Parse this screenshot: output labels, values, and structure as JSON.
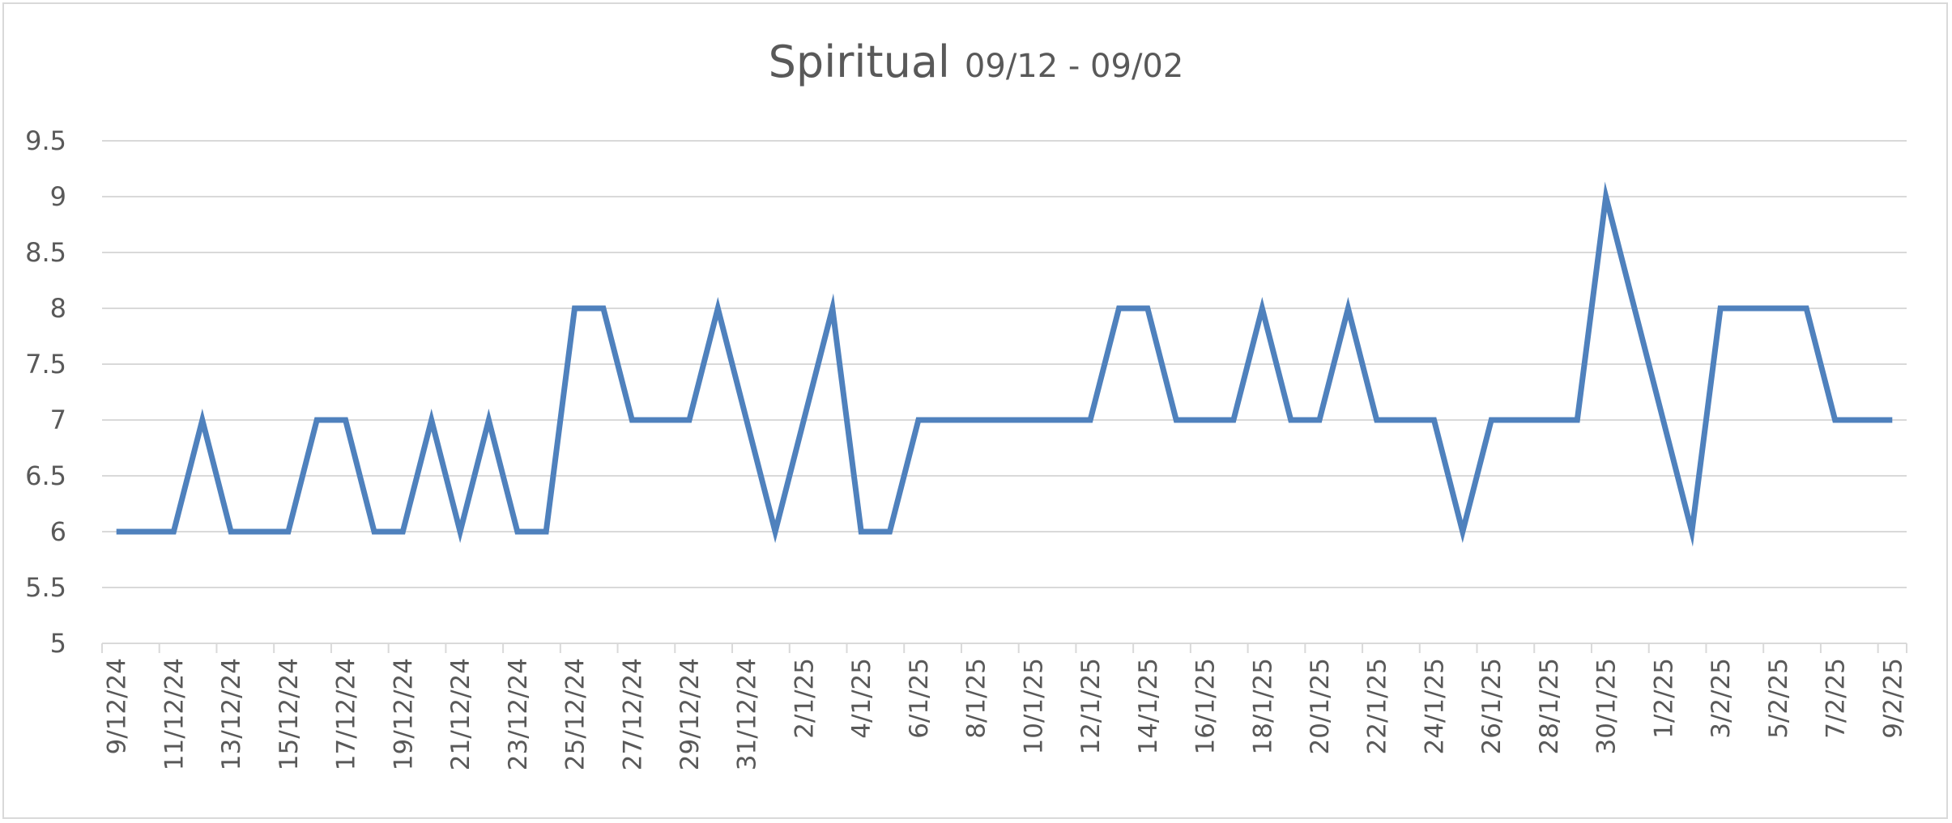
{
  "chart_data": {
    "type": "line",
    "title": "Spiritual",
    "subtitle": "09/12 - 09/02",
    "xlabel": "",
    "ylabel": "",
    "ylim": [
      5,
      9.5
    ],
    "y_ticks": [
      "5",
      "5.5",
      "6",
      "6.5",
      "7",
      "7.5",
      "8",
      "8.5",
      "9",
      "9.5"
    ],
    "grid": true,
    "legend": "none",
    "line_color": "#4F81BD",
    "x_tick_labels": [
      "9/12/24",
      "11/12/24",
      "13/12/24",
      "15/12/24",
      "17/12/24",
      "19/12/24",
      "21/12/24",
      "23/12/24",
      "25/12/24",
      "27/12/24",
      "29/12/24",
      "31/12/24",
      "2/1/25",
      "4/1/25",
      "6/1/25",
      "8/1/25",
      "10/1/25",
      "12/1/25",
      "14/1/25",
      "16/1/25",
      "18/1/25",
      "20/1/25",
      "22/1/25",
      "24/1/25",
      "26/1/25",
      "28/1/25",
      "30/1/25",
      "1/2/25",
      "3/2/25",
      "5/2/25",
      "7/2/25",
      "9/2/25"
    ],
    "x": [
      "9/12/24",
      "10/12/24",
      "11/12/24",
      "12/12/24",
      "13/12/24",
      "14/12/24",
      "15/12/24",
      "16/12/24",
      "17/12/24",
      "18/12/24",
      "19/12/24",
      "20/12/24",
      "21/12/24",
      "22/12/24",
      "23/12/24",
      "24/12/24",
      "25/12/24",
      "26/12/24",
      "27/12/24",
      "28/12/24",
      "29/12/24",
      "30/12/24",
      "31/12/24",
      "1/1/25",
      "2/1/25",
      "3/1/25",
      "4/1/25",
      "5/1/25",
      "6/1/25",
      "7/1/25",
      "8/1/25",
      "9/1/25",
      "10/1/25",
      "11/1/25",
      "12/1/25",
      "13/1/25",
      "14/1/25",
      "15/1/25",
      "16/1/25",
      "17/1/25",
      "18/1/25",
      "19/1/25",
      "20/1/25",
      "21/1/25",
      "22/1/25",
      "23/1/25",
      "24/1/25",
      "25/1/25",
      "26/1/25",
      "27/1/25",
      "28/1/25",
      "29/1/25",
      "30/1/25",
      "31/1/25",
      "1/2/25",
      "2/2/25",
      "3/2/25",
      "4/2/25",
      "5/2/25",
      "6/2/25",
      "7/2/25",
      "8/2/25",
      "9/2/25"
    ],
    "series": [
      {
        "values": [
          6,
          6,
          6,
          7,
          6,
          6,
          6,
          7,
          7,
          6,
          6,
          7,
          6,
          7,
          6,
          6,
          8,
          8,
          7,
          7,
          7,
          8,
          7,
          6,
          7,
          8,
          6,
          6,
          7,
          7,
          7,
          7,
          7,
          7,
          7,
          8,
          8,
          7,
          7,
          7,
          8,
          7,
          7,
          8,
          7,
          7,
          7,
          6,
          7,
          7,
          7,
          7,
          9,
          8,
          7,
          6,
          8,
          8,
          8,
          8,
          7,
          7,
          7
        ]
      }
    ]
  }
}
